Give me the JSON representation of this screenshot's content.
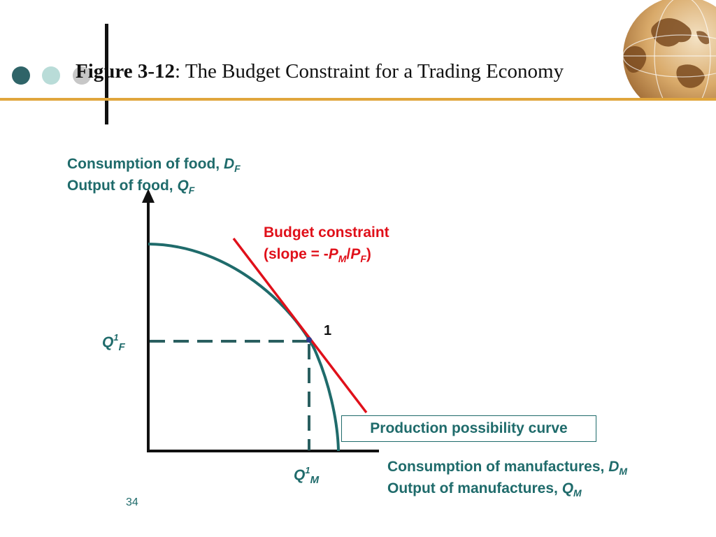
{
  "header": {
    "title_bold": "Figure 3-12",
    "title_rest": ": The Budget Constraint for a Trading Economy"
  },
  "colors": {
    "teal": "#1f6b6b",
    "red": "#e0101a",
    "accent_rule": "#e0a63c"
  },
  "diagram": {
    "y_axis": {
      "line1_text": "Consumption of food, ",
      "line1_var": "D",
      "line1_sub": "F",
      "line2_text": "Output of food, ",
      "line2_var": "Q",
      "line2_sub": "F"
    },
    "x_axis": {
      "line1_text": "Consumption of manufactures, ",
      "line1_var": "D",
      "line1_sub": "M",
      "line2_text": "Output of manufactures, ",
      "line2_var": "Q",
      "line2_sub": "M"
    },
    "budget": {
      "line1": "Budget constraint",
      "slope_open": "(slope = -",
      "p1": "P",
      "p1_sub": "M",
      "divider": "/",
      "p2": "P",
      "p2_sub": "F",
      "slope_close": ")"
    },
    "point_label": "1",
    "qf": {
      "var": "Q",
      "sup": "1",
      "sub": "F"
    },
    "qm": {
      "var": "Q",
      "sup": "1",
      "sub": "M"
    },
    "ppc_label": "Production possibility curve"
  },
  "page_number": "34",
  "globe_icon": "globe-icon"
}
